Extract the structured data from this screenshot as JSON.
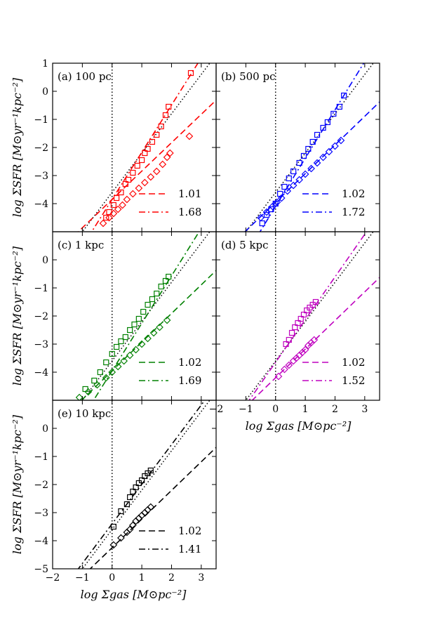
{
  "figure": {
    "xlabel": "log Σgas [M⊙pc⁻²]",
    "ylabel": "log ΣSFR [M⊙yr⁻¹kpc⁻²]"
  },
  "chart_data": [
    {
      "type": "scatter",
      "title": "(a) 100 pc",
      "color": "#ff0000",
      "xlim": [
        -2,
        3.5
      ],
      "ylim": [
        -5,
        1
      ],
      "xticks": [],
      "yticks": [
        "−4",
        "−3",
        "−2",
        "−1",
        "0",
        "1"
      ],
      "reference_line": {
        "style": "dotted",
        "slope": 1.4,
        "intercept": -3.6
      },
      "fits": [
        {
          "label": "1.01",
          "style": "dashed",
          "slope": 1.01,
          "intercept": -3.85
        },
        {
          "label": "1.68",
          "style": "dashdot",
          "slope": 1.68,
          "intercept": -3.85
        }
      ],
      "diamonds": {
        "x": [
          -0.3,
          -0.1,
          0.05,
          0.2,
          0.35,
          0.5,
          0.7,
          0.9,
          1.1,
          1.3,
          1.5,
          1.7,
          1.85,
          1.95,
          2.6
        ],
        "y": [
          -4.7,
          -4.5,
          -4.35,
          -4.2,
          -4.05,
          -3.85,
          -3.65,
          -3.45,
          -3.25,
          -3.05,
          -2.85,
          -2.6,
          -2.35,
          -2.2,
          -1.6
        ]
      },
      "squares": {
        "x": [
          -0.2,
          -0.1,
          0.05,
          0.15,
          0.3,
          0.45,
          0.55,
          0.7,
          0.85,
          1.0,
          1.1,
          1.2,
          1.35,
          1.5,
          1.65,
          1.8,
          1.9,
          2.65
        ],
        "y": [
          -4.5,
          -4.3,
          -4.05,
          -3.8,
          -3.6,
          -3.3,
          -3.15,
          -2.9,
          -2.65,
          -2.45,
          -2.2,
          -2.05,
          -1.8,
          -1.55,
          -1.25,
          -0.85,
          -0.55,
          0.65
        ]
      }
    },
    {
      "type": "scatter",
      "title": "(b) 500 pc",
      "color": "#0000ff",
      "xlim": [
        -2,
        3.5
      ],
      "ylim": [
        -5,
        1
      ],
      "xticks": [],
      "yticks": [],
      "reference_line": {
        "style": "dotted",
        "slope": 1.4,
        "intercept": -3.6
      },
      "fits": [
        {
          "label": "1.02",
          "style": "dashed",
          "slope": 1.02,
          "intercept": -3.95
        },
        {
          "label": "1.72",
          "style": "dashdot",
          "slope": 1.72,
          "intercept": -4.1
        }
      ],
      "diamonds": {
        "x": [
          -0.5,
          -0.3,
          -0.1,
          0.05,
          0.2,
          0.4,
          0.6,
          0.8,
          1.0,
          1.2,
          1.4,
          1.6,
          1.8,
          2.0,
          2.2
        ],
        "y": [
          -4.5,
          -4.3,
          -4.1,
          -3.95,
          -3.8,
          -3.55,
          -3.35,
          -3.15,
          -2.95,
          -2.75,
          -2.55,
          -2.35,
          -2.15,
          -1.95,
          -1.75
        ]
      },
      "squares": {
        "x": [
          -0.45,
          -0.3,
          -0.15,
          0.0,
          0.15,
          0.3,
          0.45,
          0.6,
          0.8,
          0.95,
          1.1,
          1.25,
          1.4,
          1.6,
          1.75,
          1.95,
          2.15,
          2.3
        ],
        "y": [
          -4.7,
          -4.4,
          -4.2,
          -4.0,
          -3.65,
          -3.4,
          -3.1,
          -2.85,
          -2.55,
          -2.3,
          -2.05,
          -1.8,
          -1.55,
          -1.3,
          -1.1,
          -0.8,
          -0.55,
          -0.15
        ]
      }
    },
    {
      "type": "scatter",
      "title": "(c) 1 kpc",
      "color": "#008000",
      "xlim": [
        -2,
        3.5
      ],
      "ylim": [
        -5,
        1
      ],
      "xticks": [],
      "yticks": [
        "−4",
        "−3",
        "−2",
        "−1",
        "0"
      ],
      "reference_line": {
        "style": "dotted",
        "slope": 1.4,
        "intercept": -3.6
      },
      "fits": [
        {
          "label": "1.02",
          "style": "dashed",
          "slope": 1.02,
          "intercept": -3.95
        },
        {
          "label": "1.69",
          "style": "dashdot",
          "slope": 1.69,
          "intercept": -3.95
        }
      ],
      "diamonds": {
        "x": [
          -1.1,
          -0.8,
          -0.5,
          -0.2,
          0.0,
          0.2,
          0.4,
          0.6,
          0.8,
          1.0,
          1.2,
          1.4,
          1.6,
          1.85
        ],
        "y": [
          -4.9,
          -4.7,
          -4.45,
          -4.2,
          -4.0,
          -3.8,
          -3.6,
          -3.4,
          -3.2,
          -3.0,
          -2.8,
          -2.6,
          -2.4,
          -2.15
        ]
      },
      "squares": {
        "x": [
          -0.9,
          -0.6,
          -0.4,
          -0.2,
          0.0,
          0.15,
          0.3,
          0.45,
          0.6,
          0.75,
          0.9,
          1.05,
          1.2,
          1.35,
          1.5,
          1.65,
          1.8,
          1.9
        ],
        "y": [
          -4.6,
          -4.3,
          -4.0,
          -3.65,
          -3.35,
          -3.1,
          -2.9,
          -2.75,
          -2.5,
          -2.3,
          -2.1,
          -1.85,
          -1.6,
          -1.4,
          -1.2,
          -0.95,
          -0.75,
          -0.6
        ]
      }
    },
    {
      "type": "scatter",
      "title": "(d) 5 kpc",
      "color": "#bf00bf",
      "xlim": [
        -2,
        3.5
      ],
      "ylim": [
        -5,
        1
      ],
      "xticks": [
        "−2",
        "−1",
        "0",
        "1",
        "2",
        "3"
      ],
      "yticks": [],
      "reference_line": {
        "style": "dotted",
        "slope": 1.4,
        "intercept": -3.6
      },
      "fits": [
        {
          "label": "1.02",
          "style": "dashed",
          "slope": 1.02,
          "intercept": -4.2
        },
        {
          "label": "1.52",
          "style": "dashdot",
          "slope": 1.52,
          "intercept": -3.65
        }
      ],
      "diamonds": {
        "x": [
          0.1,
          0.3,
          0.45,
          0.6,
          0.7,
          0.8,
          0.9,
          1.0,
          1.1,
          1.2,
          1.3
        ],
        "y": [
          -4.15,
          -3.9,
          -3.75,
          -3.6,
          -3.5,
          -3.4,
          -3.3,
          -3.2,
          -3.05,
          -2.95,
          -2.85
        ]
      },
      "squares": {
        "x": [
          0.35,
          0.45,
          0.55,
          0.65,
          0.75,
          0.85,
          0.95,
          1.05,
          1.15,
          1.25,
          1.35
        ],
        "y": [
          -3.0,
          -2.85,
          -2.6,
          -2.4,
          -2.25,
          -2.1,
          -1.95,
          -1.8,
          -1.7,
          -1.6,
          -1.5
        ]
      }
    },
    {
      "type": "scatter",
      "title": "(e) 10 kpc",
      "color": "#000000",
      "xlim": [
        -2,
        3.5
      ],
      "ylim": [
        -5,
        1
      ],
      "xticks": [
        "−2",
        "−1",
        "0",
        "1",
        "2",
        "3"
      ],
      "yticks": [
        "−5",
        "−4",
        "−3",
        "−2",
        "−1",
        "0"
      ],
      "reference_line": {
        "style": "dotted",
        "slope": 1.4,
        "intercept": -3.6
      },
      "fits": [
        {
          "label": "1.02",
          "style": "dashed",
          "slope": 1.02,
          "intercept": -4.25
        },
        {
          "label": "1.41",
          "style": "dashdot",
          "slope": 1.41,
          "intercept": -3.4
        }
      ],
      "diamonds": {
        "x": [
          0.05,
          0.3,
          0.5,
          0.6,
          0.7,
          0.8,
          0.9,
          1.0,
          1.1,
          1.2,
          1.3
        ],
        "y": [
          -4.15,
          -3.9,
          -3.7,
          -3.6,
          -3.45,
          -3.3,
          -3.2,
          -3.1,
          -3.0,
          -2.9,
          -2.8
        ]
      },
      "squares": {
        "x": [
          0.05,
          0.3,
          0.5,
          0.6,
          0.7,
          0.8,
          0.9,
          1.0,
          1.1,
          1.2,
          1.3
        ],
        "y": [
          -3.5,
          -2.95,
          -2.7,
          -2.45,
          -2.25,
          -2.1,
          -1.95,
          -1.85,
          -1.7,
          -1.6,
          -1.5
        ]
      }
    }
  ]
}
